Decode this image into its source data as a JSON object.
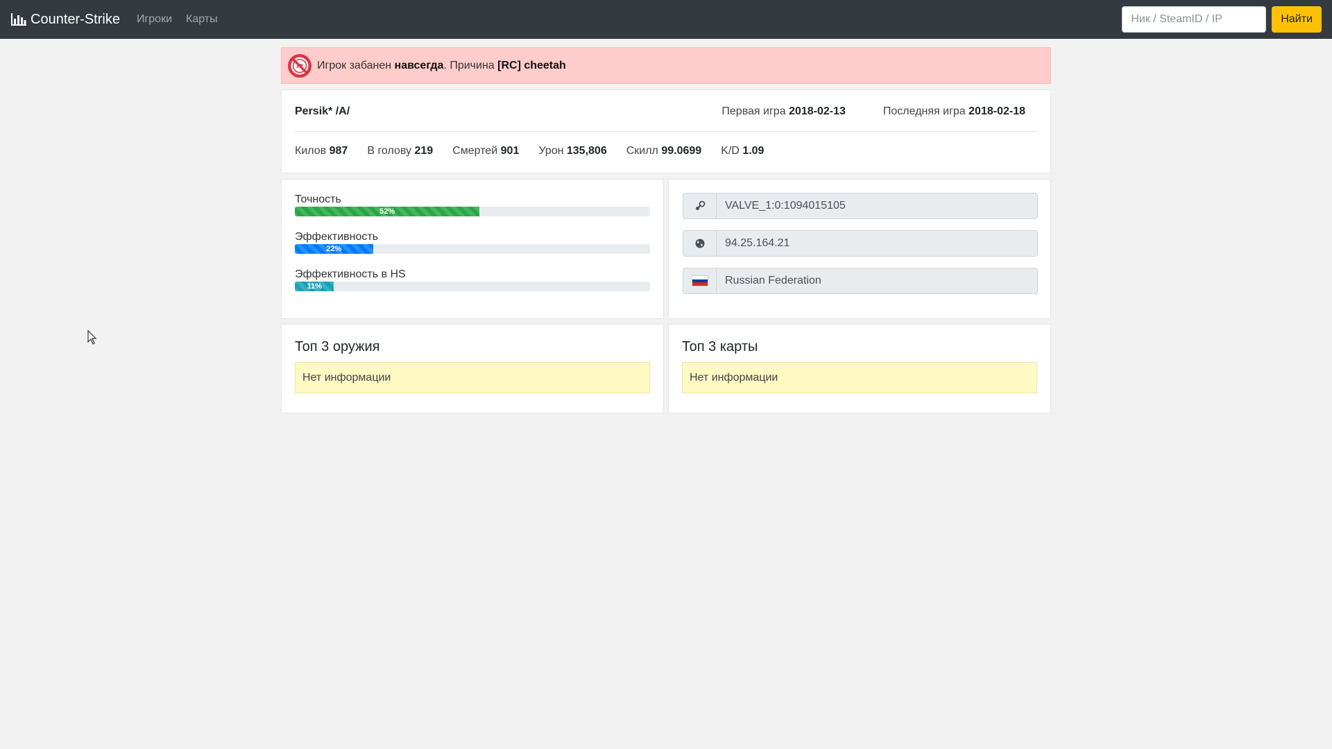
{
  "navbar": {
    "brand": "Counter-Strike",
    "brand_icon": "bar-chart-icon",
    "links": [
      "Игроки",
      "Карты"
    ],
    "search_placeholder": "Ник / SteamID / IP",
    "search_button": "Найти"
  },
  "ban_alert": {
    "icon": "ban-icon",
    "text_before": "Игрок забанен ",
    "duration": "навсегда",
    "text_middle": ". Причина ",
    "reason": "[RC] cheetah"
  },
  "player": {
    "name": "Persik* /A/",
    "first_game_label": "Первая игра",
    "first_game": "2018-02-13",
    "last_game_label": "Последняя игра",
    "last_game": "2018-02-18",
    "stats": [
      {
        "label": "Килов",
        "value": "987"
      },
      {
        "label": "В голову",
        "value": "219"
      },
      {
        "label": "Смертей",
        "value": "901"
      },
      {
        "label": "Урон",
        "value": "135,806"
      },
      {
        "label": "Скилл",
        "value": "99.0699"
      },
      {
        "label": "K/D",
        "value": "1.09"
      }
    ]
  },
  "progress": [
    {
      "label": "Точность",
      "value": 52,
      "text": "52%",
      "color": "#28a745"
    },
    {
      "label": "Эффективность",
      "value": 22,
      "text": "22%",
      "color": "#007bff"
    },
    {
      "label": "Эффективность в HS",
      "value": 11,
      "text": "11%",
      "color": "#17a2b8"
    }
  ],
  "info": {
    "steam_icon": "steam-icon",
    "steam_id": "VALVE_1:0:1094015105",
    "globe_icon": "globe-icon",
    "ip": "94.25.164.21",
    "flag_icon": "russia-flag-icon",
    "country": "Russian Federation"
  },
  "top_weapons": {
    "title": "Топ 3 оружия",
    "empty": "Нет информации"
  },
  "top_maps": {
    "title": "Топ 3 карты",
    "empty": "Нет информации"
  }
}
